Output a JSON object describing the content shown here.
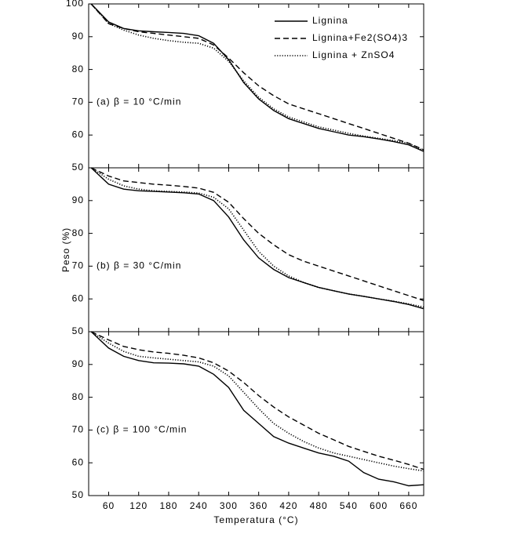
{
  "chart_data": [
    {
      "type": "line",
      "annotation": "(a) β = 10 °C/min",
      "x": [
        25,
        60,
        90,
        120,
        150,
        180,
        210,
        240,
        270,
        300,
        330,
        360,
        390,
        420,
        450,
        480,
        510,
        540,
        570,
        600,
        630,
        660,
        690
      ],
      "series": [
        {
          "name": "Lignina",
          "color": "#000000",
          "dash": "solid",
          "values": [
            100,
            94.5,
            92.5,
            91.8,
            91.5,
            91.3,
            91,
            90.3,
            88,
            83,
            76,
            71,
            67.5,
            65,
            63.5,
            62,
            61,
            60,
            59.5,
            58.8,
            58,
            57,
            55
          ]
        },
        {
          "name": "Lignina+Fe2(SO4)3",
          "color": "#000000",
          "dash": "dashed",
          "values": [
            100,
            94,
            92.5,
            91.5,
            91,
            90.5,
            90,
            89.5,
            87.5,
            83.5,
            79,
            75,
            72,
            69.5,
            68,
            66.5,
            65,
            63.5,
            62,
            60.5,
            59,
            57.5,
            55.5
          ]
        },
        {
          "name": "Lignina + ZnSO4",
          "color": "#000000",
          "dash": "dotted",
          "values": [
            100,
            94,
            92,
            90.5,
            89.5,
            88.8,
            88.3,
            88,
            86.5,
            82.5,
            76.5,
            71.5,
            68,
            65.5,
            64,
            62.5,
            61.5,
            60.5,
            59.7,
            59,
            58.3,
            57.5,
            55.3
          ]
        }
      ],
      "xlim": [
        20,
        690
      ],
      "xticks": [
        60,
        120,
        180,
        240,
        300,
        360,
        420,
        480,
        540,
        600,
        660
      ],
      "ylim": [
        50,
        100
      ],
      "yticks": [
        50,
        60,
        70,
        80,
        90,
        100
      ],
      "legend": "upper right"
    },
    {
      "type": "line",
      "annotation": "(b) β = 30 °C/min",
      "ylabel": "Peso (%)",
      "x": [
        25,
        60,
        90,
        120,
        150,
        180,
        210,
        240,
        270,
        300,
        330,
        360,
        390,
        420,
        450,
        480,
        510,
        540,
        570,
        600,
        630,
        660,
        690
      ],
      "series": [
        {
          "color": "#000000",
          "dash": "solid",
          "values": [
            100,
            95,
            93.5,
            93,
            92.8,
            92.6,
            92.4,
            92,
            90,
            85,
            78,
            72.5,
            69,
            66.5,
            65,
            63.5,
            62.5,
            61.5,
            60.8,
            60,
            59.2,
            58.3,
            57
          ]
        },
        {
          "color": "#000000",
          "dash": "dashed",
          "values": [
            100,
            97.5,
            96,
            95.5,
            95,
            94.7,
            94.3,
            93.8,
            92.5,
            89.5,
            84.5,
            80,
            76.5,
            73.5,
            71.5,
            70,
            68.5,
            67,
            65.5,
            64,
            62.5,
            61,
            59.5
          ]
        },
        {
          "color": "#000000",
          "dash": "dotted",
          "values": [
            100,
            96.5,
            94.5,
            93.5,
            93,
            92.8,
            92.6,
            92.3,
            91,
            87.5,
            81,
            74.5,
            70,
            67,
            65,
            63.5,
            62.5,
            61.5,
            60.8,
            60,
            59.3,
            58.5,
            57.5
          ]
        }
      ],
      "xlim": [
        20,
        690
      ],
      "xticks": [
        60,
        120,
        180,
        240,
        300,
        360,
        420,
        480,
        540,
        600,
        660
      ],
      "ylim": [
        50,
        100
      ],
      "yticks": [
        50,
        60,
        70,
        80,
        90
      ]
    },
    {
      "type": "line",
      "annotation": "(c) β = 100 °C/min",
      "xlabel": "Temperatura (°C)",
      "x": [
        25,
        60,
        90,
        120,
        150,
        180,
        210,
        240,
        270,
        300,
        330,
        360,
        390,
        420,
        450,
        480,
        510,
        540,
        570,
        600,
        630,
        660,
        690
      ],
      "series": [
        {
          "color": "#000000",
          "dash": "solid",
          "values": [
            100,
            95,
            92.5,
            91.2,
            90.5,
            90.4,
            90.2,
            89.5,
            87,
            83,
            76,
            72,
            68,
            66,
            64.5,
            63,
            62,
            60.5,
            57,
            55,
            54.2,
            53,
            53.3
          ]
        },
        {
          "color": "#000000",
          "dash": "dashed",
          "values": [
            100,
            97.5,
            95.5,
            94.5,
            93.8,
            93.4,
            92.8,
            92,
            90.5,
            88,
            84.5,
            80.5,
            77,
            74,
            71.5,
            69,
            67,
            65,
            63.5,
            62,
            60.8,
            59.5,
            58
          ]
        },
        {
          "color": "#000000",
          "dash": "dotted",
          "values": [
            100,
            96.5,
            94,
            92.5,
            92,
            91.6,
            91.2,
            90.8,
            89.5,
            86.5,
            81.5,
            76.5,
            72,
            69,
            66.5,
            64.5,
            63,
            62,
            61,
            60,
            59,
            58.2,
            57.5
          ]
        }
      ],
      "xlim": [
        20,
        690
      ],
      "xticks": [
        60,
        120,
        180,
        240,
        300,
        360,
        420,
        480,
        540,
        600,
        660
      ],
      "ylim": [
        50,
        100
      ],
      "yticks": [
        50,
        60,
        70,
        80,
        90
      ],
      "xticklabels": true
    }
  ]
}
